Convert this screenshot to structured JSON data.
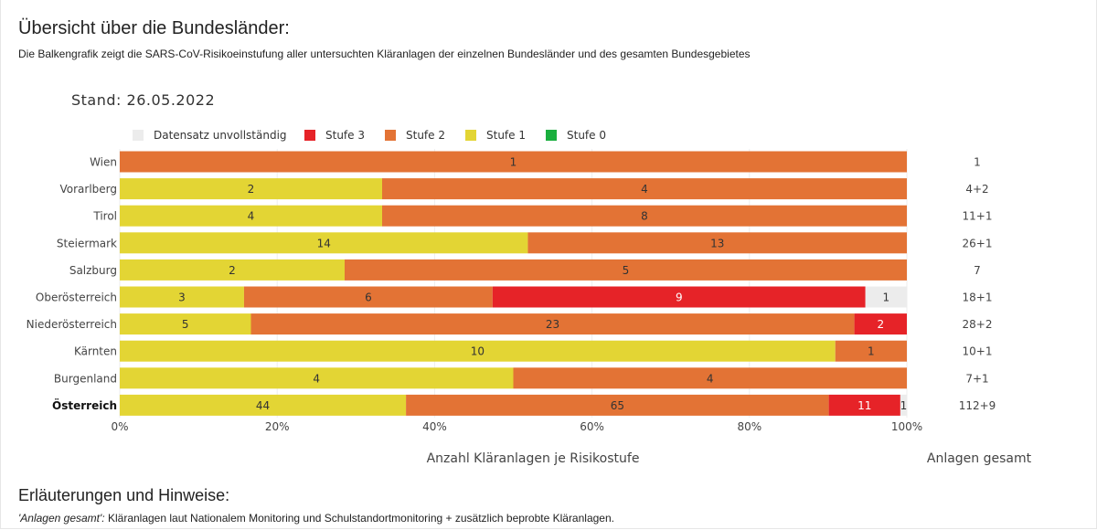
{
  "page": {
    "title": "Übersicht über die Bundesländer:",
    "description": "Die Balkengrafik zeigt die SARS-CoV-Risikoeinstufung aller untersuchten Kläranlagen der einzelnen Bundesländer und des gesamten Bundesgebietes",
    "notes_title": "Erläuterungen und Hinweise:",
    "notes_term": "'Anlagen gesamt':",
    "notes_text": " Kläranlagen laut Nationalem Monitoring und Schulstandortmonitoring + zusätzlich beprobte Kläranlagen."
  },
  "chart_data": {
    "type": "bar",
    "orientation": "horizontal",
    "stacked": "percent",
    "title": "Stand: 26.05.2022",
    "xlabel": "Anzahl Kläranlagen je Risikostufe",
    "right_label": "Anlagen gesamt",
    "xlim": [
      0,
      100
    ],
    "x_ticks": [
      "0%",
      "20%",
      "40%",
      "60%",
      "80%",
      "100%"
    ],
    "legend_position": "top-left",
    "legend_order": [
      "Datensatz unvollständig",
      "Stufe 3",
      "Stufe 2",
      "Stufe 1",
      "Stufe 0"
    ],
    "categories": [
      "Wien",
      "Vorarlberg",
      "Tirol",
      "Steiermark",
      "Salzburg",
      "Oberösterreich",
      "Niederösterreich",
      "Kärnten",
      "Burgenland",
      "Österreich"
    ],
    "emphasized_category": "Österreich",
    "series": [
      {
        "name": "Stufe 0",
        "color": "#1aaf3e",
        "values": [
          0,
          0,
          0,
          0,
          0,
          0,
          0,
          0,
          0,
          0
        ]
      },
      {
        "name": "Stufe 1",
        "color": "#e3d534",
        "values": [
          0,
          2,
          4,
          14,
          2,
          3,
          5,
          10,
          4,
          44
        ]
      },
      {
        "name": "Stufe 2",
        "color": "#e37335",
        "values": [
          1,
          4,
          8,
          13,
          5,
          6,
          23,
          1,
          4,
          65
        ]
      },
      {
        "name": "Stufe 3",
        "color": "#e62328",
        "values": [
          0,
          0,
          0,
          0,
          0,
          9,
          2,
          0,
          0,
          11
        ]
      },
      {
        "name": "Datensatz unvollständig",
        "color": "#ececec",
        "values": [
          0,
          0,
          0,
          0,
          0,
          1,
          0,
          0,
          0,
          1
        ]
      }
    ],
    "totals": [
      "1",
      "4+2",
      "11+1",
      "26+1",
      "7",
      "18+1",
      "28+2",
      "10+1",
      "7+1",
      "112+9"
    ]
  }
}
